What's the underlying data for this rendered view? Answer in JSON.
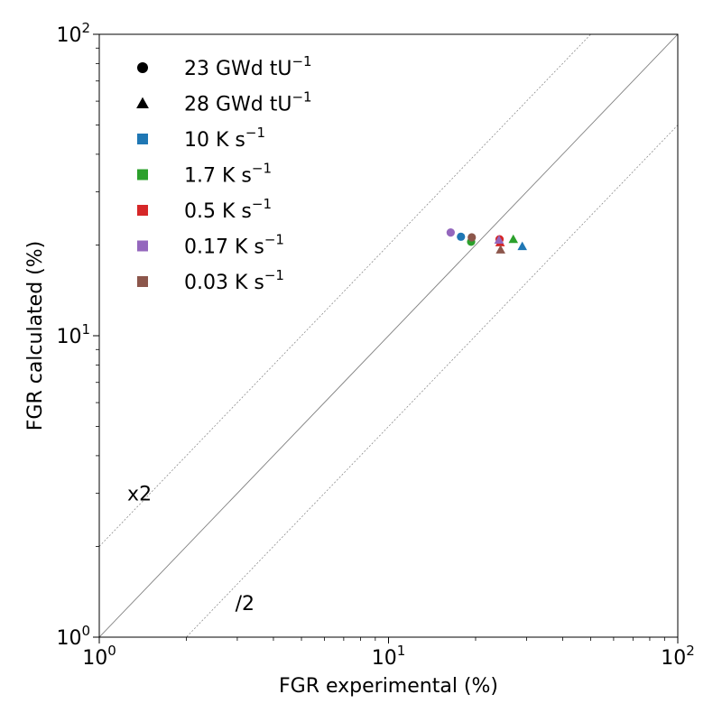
{
  "chart_data": {
    "type": "scatter",
    "title": "",
    "xlabel": "FGR experimental (%)",
    "ylabel": "FGR calculated (%)",
    "xscale": "log",
    "yscale": "log",
    "xlim": [
      1,
      100
    ],
    "ylim": [
      1,
      100
    ],
    "x_ticks": [
      {
        "value": 1,
        "base": "10",
        "exp": "0"
      },
      {
        "value": 10,
        "base": "10",
        "exp": "1"
      },
      {
        "value": 100,
        "base": "10",
        "exp": "2"
      }
    ],
    "y_ticks": [
      {
        "value": 1,
        "base": "10",
        "exp": "0"
      },
      {
        "value": 10,
        "base": "10",
        "exp": "1"
      },
      {
        "value": 100,
        "base": "10",
        "exp": "2"
      }
    ],
    "grid": false,
    "reference_lines": [
      {
        "slope_factor": 1,
        "style": "solid",
        "color": "#808080"
      },
      {
        "slope_factor": 2,
        "style": "dashed",
        "color": "#808080",
        "label": "x2",
        "label_at": [
          1.25,
          3.0
        ]
      },
      {
        "slope_factor": 0.5,
        "style": "dashed",
        "color": "#808080",
        "label": "/2",
        "label_at": [
          2.95,
          1.3
        ]
      }
    ],
    "legend_placement": "top-left",
    "legend": [
      {
        "base": "23 GWd tU",
        "sup": "−1",
        "marker": "circle",
        "color": "#000000"
      },
      {
        "base": "28 GWd tU",
        "sup": "−1",
        "marker": "triangle",
        "color": "#000000"
      },
      {
        "base": "10 K s",
        "sup": "−1",
        "marker": "square",
        "color": "#1f77b4"
      },
      {
        "base": "1.7 K s",
        "sup": "−1",
        "marker": "square",
        "color": "#2ca02c"
      },
      {
        "base": "0.5 K s",
        "sup": "−1",
        "marker": "square",
        "color": "#d62728"
      },
      {
        "base": "0.17 K s",
        "sup": "−1",
        "marker": "square",
        "color": "#9467bd"
      },
      {
        "base": "0.03 K s",
        "sup": "−1",
        "marker": "square",
        "color": "#8c564b"
      }
    ],
    "series": [
      {
        "burnup": "23 GWd tU-1",
        "rate": "10 K s-1",
        "marker": "circle",
        "color": "#1f77b4",
        "points": [
          [
            17.8,
            21.3
          ]
        ]
      },
      {
        "burnup": "23 GWd tU-1",
        "rate": "1.7 K s-1",
        "marker": "circle",
        "color": "#2ca02c",
        "points": [
          [
            19.3,
            20.5
          ]
        ]
      },
      {
        "burnup": "23 GWd tU-1",
        "rate": "0.5 K s-1",
        "marker": "circle",
        "color": "#d62728",
        "points": [
          [
            24.2,
            20.9
          ]
        ]
      },
      {
        "burnup": "23 GWd tU-1",
        "rate": "0.17 K s-1",
        "marker": "circle",
        "color": "#9467bd",
        "points": [
          [
            16.4,
            22.0
          ]
        ]
      },
      {
        "burnup": "23 GWd tU-1",
        "rate": "0.03 K s-1",
        "marker": "circle",
        "color": "#8c564b",
        "points": [
          [
            19.4,
            21.2
          ]
        ]
      },
      {
        "burnup": "28 GWd tU-1",
        "rate": "10 K s-1",
        "marker": "triangle",
        "color": "#1f77b4",
        "points": [
          [
            29.0,
            19.8
          ]
        ]
      },
      {
        "burnup": "28 GWd tU-1",
        "rate": "1.7 K s-1",
        "marker": "triangle",
        "color": "#2ca02c",
        "points": [
          [
            27.0,
            20.9
          ]
        ]
      },
      {
        "burnup": "28 GWd tU-1",
        "rate": "0.5 K s-1",
        "marker": "triangle",
        "color": "#d62728",
        "points": [
          [
            24.3,
            20.4
          ]
        ]
      },
      {
        "burnup": "28 GWd tU-1",
        "rate": "0.17 K s-1",
        "marker": "triangle",
        "color": "#9467bd",
        "points": [
          [
            24.1,
            20.8
          ]
        ]
      },
      {
        "burnup": "28 GWd tU-1",
        "rate": "0.03 K s-1",
        "marker": "triangle",
        "color": "#8c564b",
        "points": [
          [
            24.4,
            19.3
          ]
        ]
      }
    ]
  }
}
